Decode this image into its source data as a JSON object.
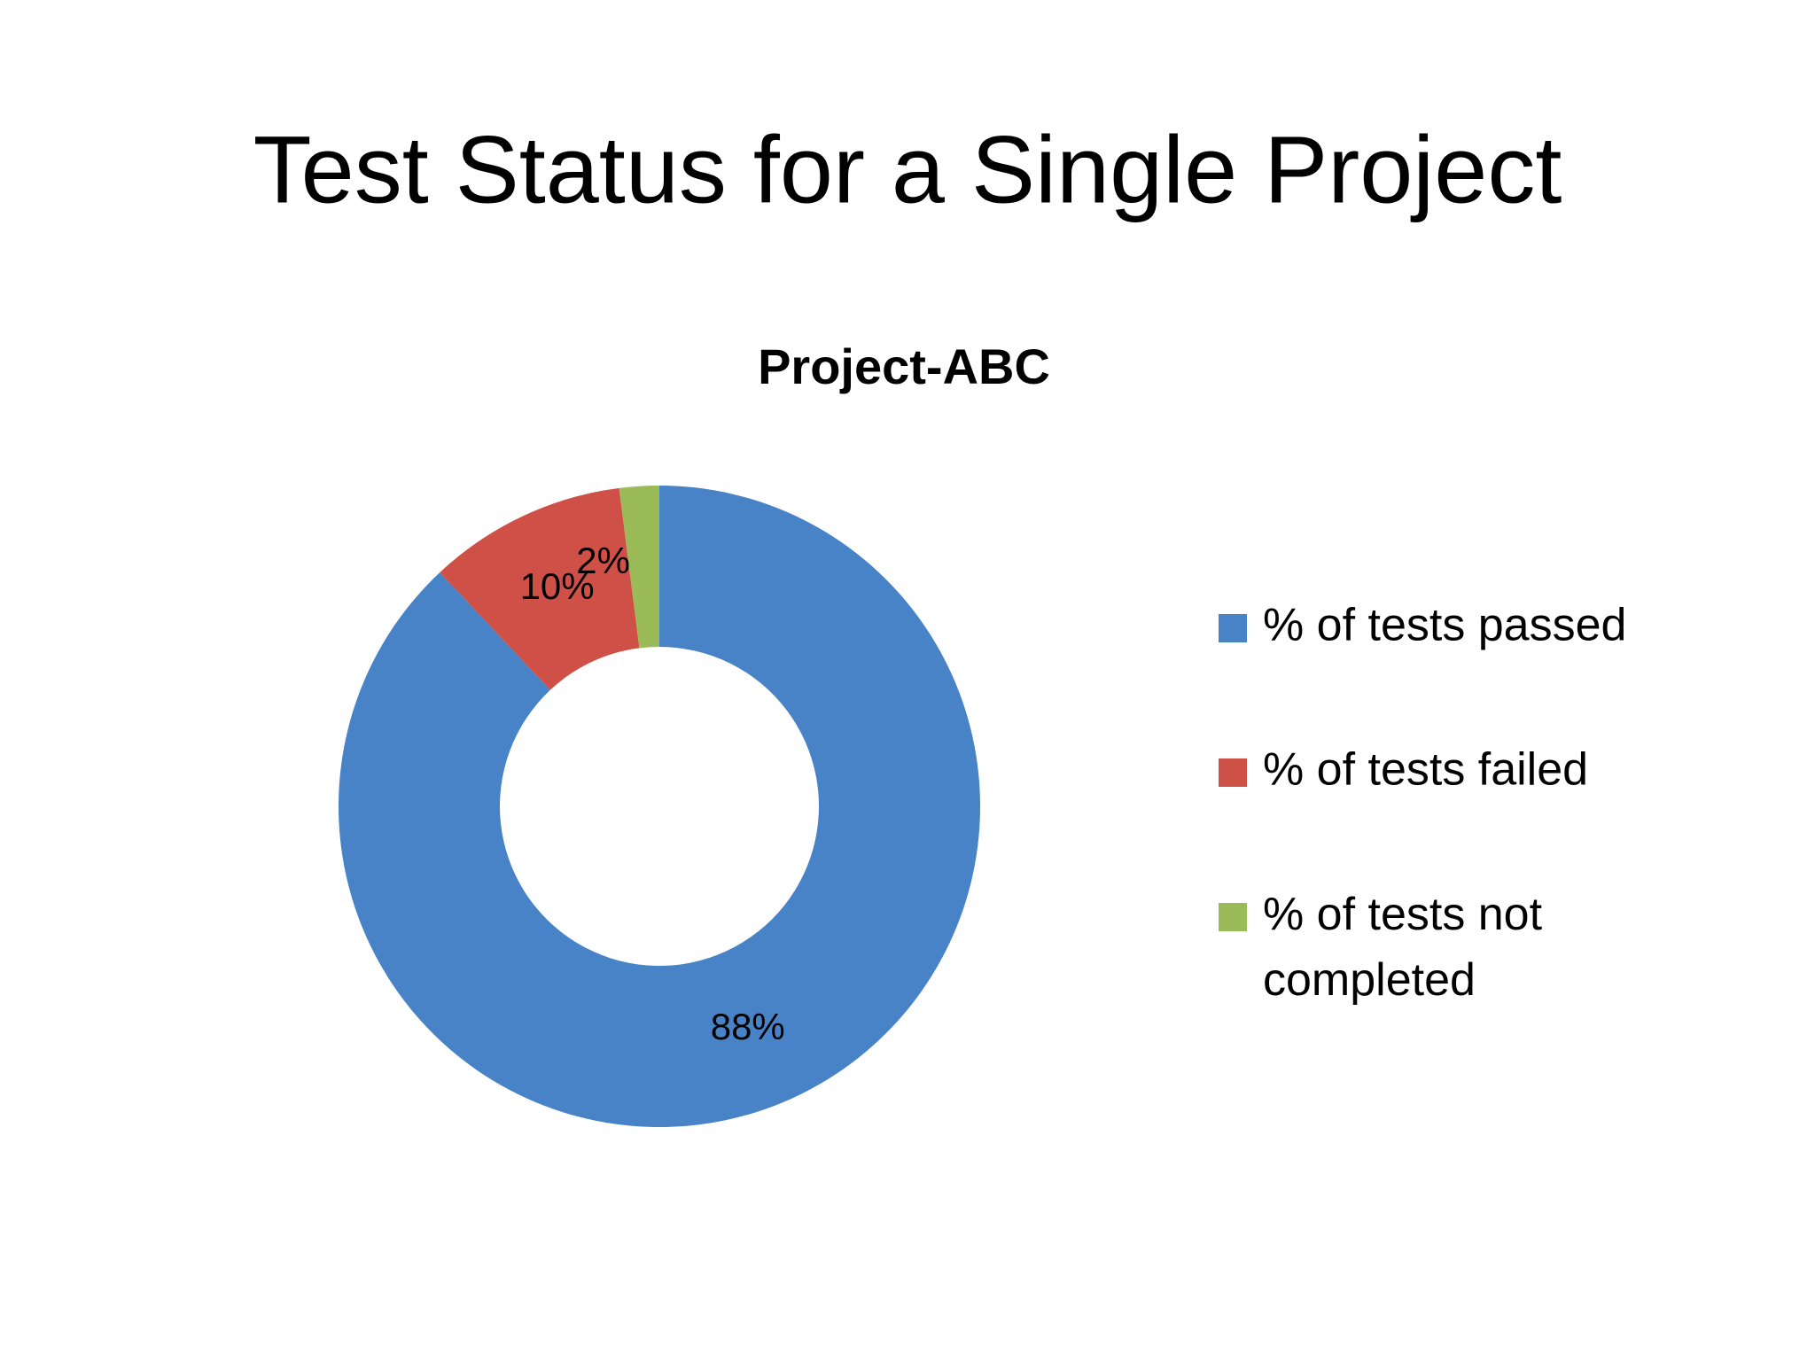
{
  "title": "Test Status for a Single Project",
  "chart_data": {
    "type": "donut",
    "title": "Project-ABC",
    "categories": [
      "% of tests passed",
      "% of tests failed",
      "% of tests not completed"
    ],
    "values": [
      88,
      10,
      2
    ],
    "value_labels": [
      "88%",
      "10%",
      "2%"
    ],
    "colors": [
      "#4783c6",
      "#cf5047",
      "#9bbb59"
    ],
    "legend": "right"
  }
}
